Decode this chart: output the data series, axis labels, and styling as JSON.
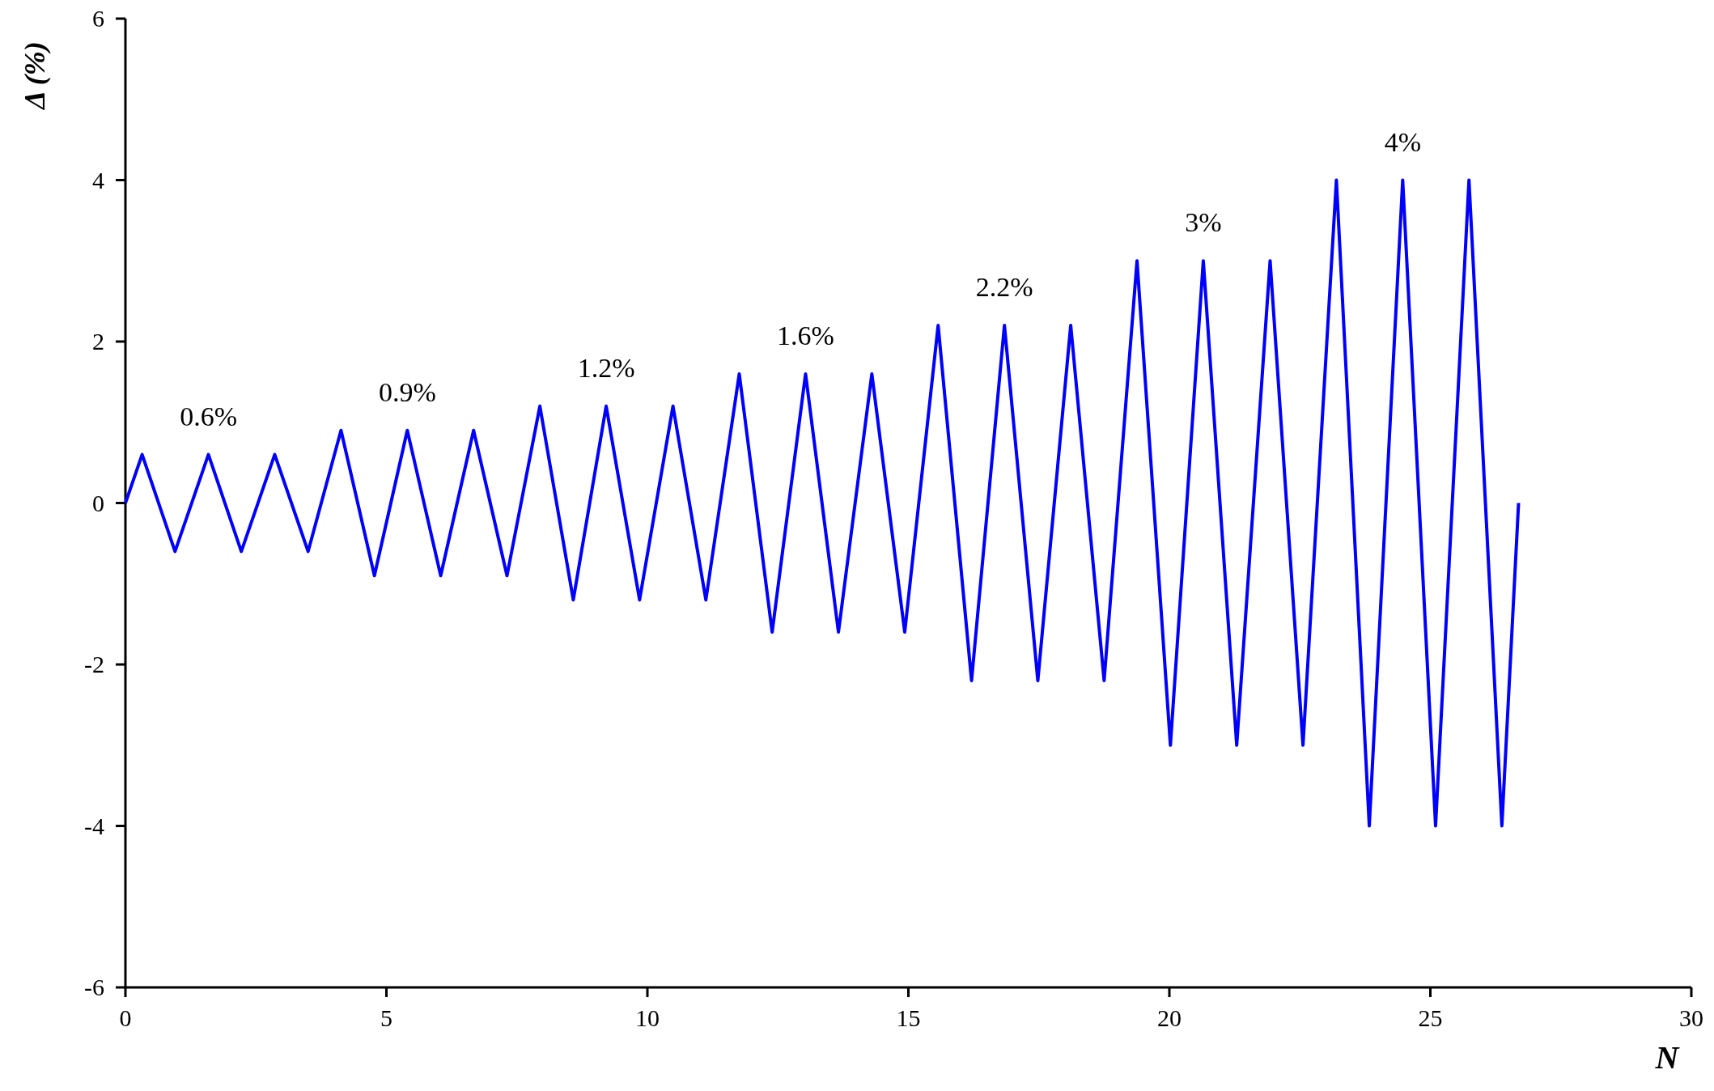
{
  "chart_data": {
    "type": "line",
    "xlabel": "N",
    "ylabel": "Δ (%)",
    "x": [
      0,
      0.32,
      0.95,
      1.59,
      2.22,
      2.86,
      3.5,
      4.13,
      4.77,
      5.4,
      6.04,
      6.67,
      7.31,
      7.94,
      8.58,
      9.21,
      9.85,
      10.49,
      11.12,
      11.76,
      12.39,
      13.03,
      13.66,
      14.3,
      14.93,
      15.57,
      16.21,
      16.84,
      17.48,
      18.11,
      18.75,
      19.38,
      20.02,
      20.65,
      21.29,
      21.93,
      22.56,
      23.2,
      23.83,
      24.47,
      25.1,
      25.74,
      26.37,
      26.69
    ],
    "series": [
      {
        "color": "#0000ff",
        "values": [
          0,
          0.6,
          -0.6,
          0.6,
          -0.6,
          0.6,
          -0.6,
          0.9,
          -0.9,
          0.9,
          -0.9,
          0.9,
          -0.9,
          1.2,
          -1.2,
          1.2,
          -1.2,
          1.2,
          -1.2,
          1.6,
          -1.6,
          1.6,
          -1.6,
          1.6,
          -1.6,
          2.2,
          -2.2,
          2.2,
          -2.2,
          2.2,
          -2.2,
          3,
          -3,
          3,
          -3,
          3,
          -3,
          4,
          -4,
          4,
          -4,
          4,
          -4,
          0
        ]
      }
    ],
    "xlim": [
      0,
      30
    ],
    "xticks": [
      0,
      5,
      10,
      15,
      20,
      25,
      30
    ],
    "ylim": [
      -6,
      6
    ],
    "yticks": [
      -6,
      -4,
      -2,
      0,
      2,
      4,
      6
    ],
    "grid": false,
    "marker": "none",
    "line_style": "solid",
    "annotations": [
      {
        "text": "0.6%",
        "x": 1.59,
        "y": 0.6
      },
      {
        "text": "0.9%",
        "x": 5.4,
        "y": 0.9
      },
      {
        "text": "1.2%",
        "x": 9.21,
        "y": 1.2
      },
      {
        "text": "1.6%",
        "x": 13.03,
        "y": 1.6
      },
      {
        "text": "2.2%",
        "x": 16.84,
        "y": 2.2
      },
      {
        "text": "3%",
        "x": 20.65,
        "y": 3
      },
      {
        "text": "4%",
        "x": 24.47,
        "y": 4
      }
    ]
  }
}
